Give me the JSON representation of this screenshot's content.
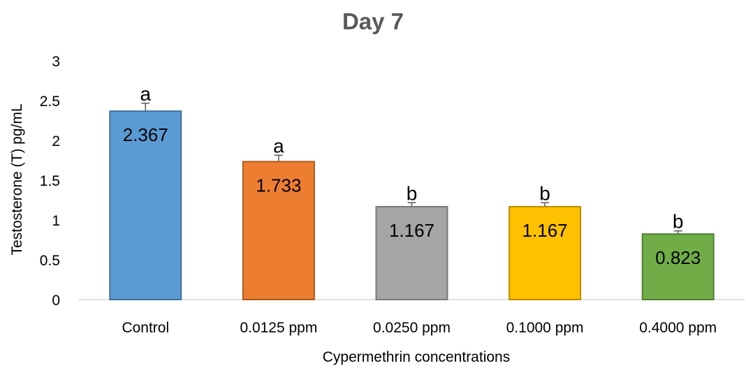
{
  "chart_data": {
    "type": "bar",
    "title": "Day 7",
    "xlabel": "Cypermethrin concentrations",
    "ylabel": "Testosterone (T) pg/mL",
    "ylim": [
      0,
      3
    ],
    "yticks": [
      "0",
      "0.5",
      "1",
      "1.5",
      "2",
      "2.5",
      "3"
    ],
    "grid": false,
    "categories": [
      "Control",
      "0.0125 ppm",
      "0.0250 ppm",
      "0.1000 ppm",
      "0.4000 ppm"
    ],
    "values": [
      2.367,
      1.733,
      1.167,
      1.167,
      0.823
    ],
    "value_labels": [
      "2.367",
      "1.733",
      "1.167",
      "1.167",
      "0.823"
    ],
    "errors": [
      0.1,
      0.08,
      0.05,
      0.05,
      0.04
    ],
    "significance": [
      "a",
      "a",
      "b",
      "b",
      "b"
    ],
    "colors": [
      "#5B9BD5",
      "#ED7D31",
      "#A5A5A5",
      "#FFC000",
      "#70AD47"
    ],
    "border_colors": [
      "#41719C",
      "#AE5A21",
      "#787878",
      "#BC8C00",
      "#507E32"
    ]
  }
}
